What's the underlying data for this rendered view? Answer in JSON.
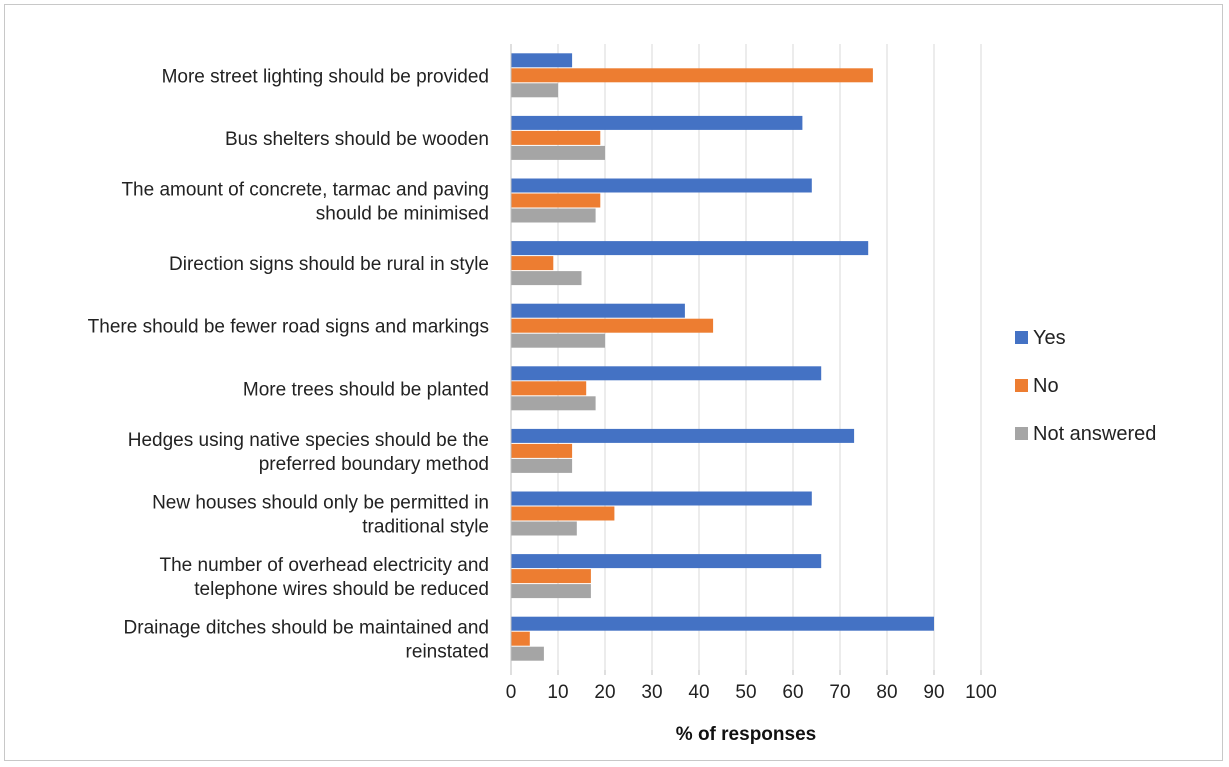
{
  "chart_data": {
    "type": "bar",
    "orientation": "horizontal",
    "categories": [
      [
        "More street lighting should be provided"
      ],
      [
        "Bus shelters should be wooden"
      ],
      [
        "The amount of concrete, tarmac and paving",
        "should be minimised"
      ],
      [
        "Direction signs should be rural in style"
      ],
      [
        "There should be fewer road signs and markings"
      ],
      [
        "More trees should be planted"
      ],
      [
        "Hedges using native species should be the",
        "preferred boundary method"
      ],
      [
        "New houses should only be permitted in",
        "traditional style"
      ],
      [
        "The number of overhead electricity and",
        "telephone wires should be reduced"
      ],
      [
        "Drainage ditches should be maintained and",
        "reinstated"
      ]
    ],
    "series": [
      {
        "name": "Yes",
        "color": "#4472C4",
        "values": [
          13,
          62,
          64,
          76,
          37,
          66,
          73,
          64,
          66,
          90
        ]
      },
      {
        "name": "No",
        "color": "#ED7D31",
        "values": [
          77,
          19,
          19,
          9,
          43,
          16,
          13,
          22,
          17,
          4
        ]
      },
      {
        "name": "Not answered",
        "color": "#A5A5A5",
        "values": [
          10,
          20,
          18,
          15,
          20,
          18,
          13,
          14,
          17,
          7
        ]
      }
    ],
    "xlabel": "% of responses",
    "xlim": [
      0,
      100
    ],
    "xticks": [
      "0",
      "10",
      "20",
      "30",
      "40",
      "50",
      "60",
      "70",
      "80",
      "90",
      "100"
    ],
    "grid": true,
    "legend": "right"
  }
}
